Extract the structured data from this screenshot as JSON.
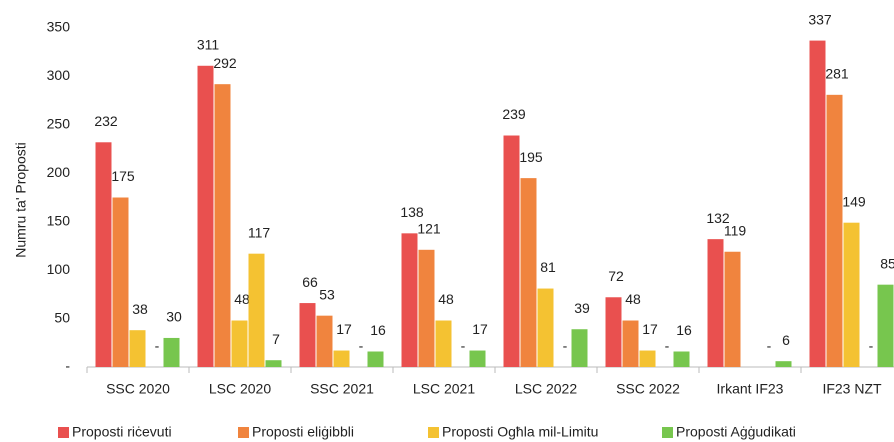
{
  "chart_data": {
    "type": "bar",
    "ylabel": "Numru ta' Proposti",
    "categories": [
      "SSC 2020",
      "LSC 2020",
      "SSC 2021",
      "LSC 2021",
      "LSC 2022",
      "SSC 2022",
      "Irkant IF23",
      "IF23 NZT"
    ],
    "series": [
      {
        "name": "Proposti riċevuti",
        "color": "#e9504f",
        "values": [
          232,
          311,
          66,
          138,
          239,
          72,
          132,
          337
        ]
      },
      {
        "name": "Proposti eliġibbli",
        "color": "#f0843e",
        "values": [
          175,
          292,
          53,
          121,
          195,
          48,
          119,
          281
        ]
      },
      {
        "name": "Proposti Ogħla mil-Limitu",
        "color": "#f4c232",
        "values": [
          38,
          48,
          17,
          48,
          81,
          17,
          null,
          149
        ]
      },
      {
        "color": "#f4c232",
        "values": [
          0,
          117,
          0,
          0,
          0,
          0,
          0,
          0
        ],
        "value_labels": [
          "-",
          "117",
          "-",
          "-",
          "-",
          "-",
          "-",
          "-"
        ]
      },
      {
        "name": "Proposti Aġġudikati",
        "color": "#77c64e",
        "values": [
          30,
          7,
          16,
          17,
          39,
          16,
          6,
          85
        ]
      }
    ],
    "ylim": [
      0,
      350
    ],
    "yticks": [
      {
        "value": 0,
        "label": "-"
      },
      50,
      100,
      150,
      200,
      250,
      300,
      350
    ],
    "grid": false
  }
}
